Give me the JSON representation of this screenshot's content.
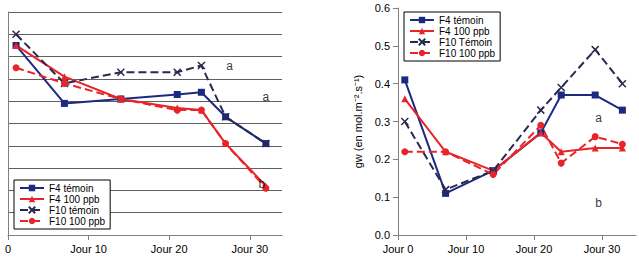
{
  "chart_data": [
    {
      "type": "line",
      "x": [
        1,
        7,
        14,
        21,
        24,
        27,
        32
      ],
      "xlim": [
        0,
        34
      ],
      "xticks": [
        {
          "value": 0,
          "label": "0"
        },
        {
          "value": 10,
          "label": "Jour 10"
        },
        {
          "value": 20,
          "label": "Jour 20"
        },
        {
          "value": 30,
          "label": "Jour 30"
        }
      ],
      "ylim": [
        0,
        10
      ],
      "yticks": [
        0,
        1,
        2,
        3,
        4,
        5,
        6,
        7,
        8,
        9,
        10
      ],
      "tick_labels": "x",
      "grid": true,
      "legend": "lower left",
      "series": [
        {
          "name": "F4 témoin",
          "color": "#1b2a80",
          "marker": "square",
          "line_style": "solid",
          "values": [
            8.5,
            5.9,
            6.1,
            6.3,
            6.4,
            5.3,
            4.1
          ]
        },
        {
          "name": "F4 100 ppb",
          "color": "#e8242a",
          "marker": "triangle",
          "line_style": "solid",
          "values": [
            8.5,
            7.1,
            6.1,
            5.7,
            5.6,
            4.1,
            2.2
          ]
        },
        {
          "name": "F10 témoin",
          "color": "#2a2a50",
          "marker": "x",
          "line_style": "dashed",
          "values": [
            9.0,
            6.8,
            7.3,
            7.3,
            7.6,
            5.3,
            4.1
          ]
        },
        {
          "name": "F10 100 ppb",
          "color": "#e8242a",
          "marker": "circle",
          "line_style": "dashed",
          "values": [
            7.5,
            6.8,
            6.1,
            5.6,
            5.6,
            4.1,
            2.1
          ]
        }
      ],
      "annotations": [
        {
          "text": "a",
          "x": 27.5,
          "y": 7.6
        },
        {
          "text": "a",
          "x": 32,
          "y": 6.2
        },
        {
          "text": "b",
          "x": 31.5,
          "y": 2.3
        }
      ]
    },
    {
      "type": "line",
      "x": [
        1,
        7,
        14,
        21,
        24,
        29,
        33
      ],
      "xlim": [
        0,
        35
      ],
      "xticks": [
        {
          "value": 0,
          "label": "Jour 0"
        },
        {
          "value": 10,
          "label": "Jour 10"
        },
        {
          "value": 20,
          "label": "Jour 20"
        },
        {
          "value": 30,
          "label": "Jour 30"
        }
      ],
      "ylim": [
        0,
        0.6
      ],
      "yticks": [
        {
          "value": 0,
          "label": "0.0"
        },
        0.1,
        0.2,
        0.3,
        0.4,
        0.5,
        0.6
      ],
      "ylabel": "gw (en mol.m⁻².s⁻¹)",
      "grid": false,
      "legend": "upper left",
      "series": [
        {
          "name": "F4 témoin",
          "color": "#1b2a80",
          "marker": "square",
          "line_style": "solid",
          "values": [
            0.41,
            0.11,
            0.17,
            0.27,
            0.37,
            0.37,
            0.33
          ]
        },
        {
          "name": "F4 100 ppb",
          "color": "#e8242a",
          "marker": "triangle",
          "line_style": "solid",
          "values": [
            0.36,
            0.22,
            0.17,
            0.27,
            0.22,
            0.23,
            0.23
          ]
        },
        {
          "name": "F10 Témoin",
          "color": "#2a2a50",
          "marker": "x",
          "line_style": "dashed",
          "values": [
            0.3,
            0.12,
            0.17,
            0.33,
            0.39,
            0.49,
            0.4
          ]
        },
        {
          "name": "F10 100 ppb",
          "color": "#e8242a",
          "marker": "circle",
          "line_style": "dashed",
          "values": [
            0.22,
            0.22,
            0.16,
            0.29,
            0.19,
            0.26,
            0.24
          ]
        }
      ],
      "annotations": [
        {
          "text": "a",
          "x": 29.5,
          "y": 0.31
        },
        {
          "text": "b",
          "x": 29.5,
          "y": 0.085
        }
      ]
    }
  ]
}
